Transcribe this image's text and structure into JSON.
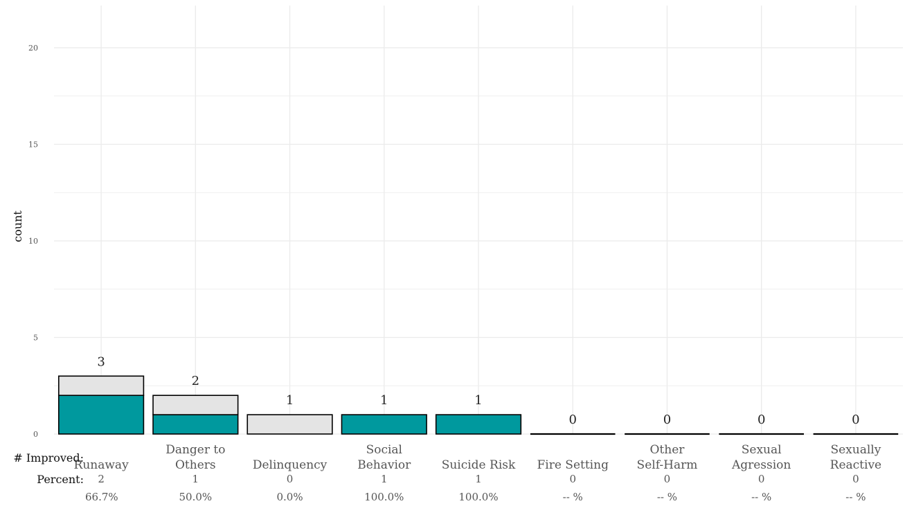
{
  "chart_data": {
    "type": "bar",
    "stacked": true,
    "ylabel": "count",
    "ylim": [
      0,
      22
    ],
    "yticks": [
      0,
      5,
      10,
      15,
      20
    ],
    "grid": true,
    "categories": [
      [
        "Runaway"
      ],
      [
        "Danger to",
        "Others"
      ],
      [
        "Delinquency"
      ],
      [
        "Social",
        "Behavior"
      ],
      [
        "Suicide Risk"
      ],
      [
        "Fire Setting"
      ],
      [
        "Other",
        "Self-Harm"
      ],
      [
        "Sexual",
        "Agression"
      ],
      [
        "Sexually",
        "Reactive"
      ]
    ],
    "series": [
      {
        "values": [
          2,
          1,
          0,
          1,
          1,
          0,
          0,
          0,
          0
        ]
      },
      {
        "values": [
          1,
          1,
          1,
          0,
          0,
          0,
          0,
          0,
          0
        ]
      }
    ],
    "totals": [
      3,
      2,
      1,
      1,
      1,
      0,
      0,
      0,
      0
    ],
    "improved_label": "# Improved:",
    "improved": [
      "2",
      "1",
      "0",
      "1",
      "1",
      "0",
      "0",
      "0",
      "0"
    ],
    "percent_label": "Percent:",
    "percent": [
      "66.7%",
      "50.0%",
      "0.0%",
      "100.0%",
      "100.0%",
      "-- %",
      "-- %",
      "-- %",
      "-- %"
    ],
    "colors": {
      "improved": "#00999e",
      "not_improved": "#e4e4e4",
      "outline": "#000000",
      "grid": "#ebebeb"
    }
  }
}
